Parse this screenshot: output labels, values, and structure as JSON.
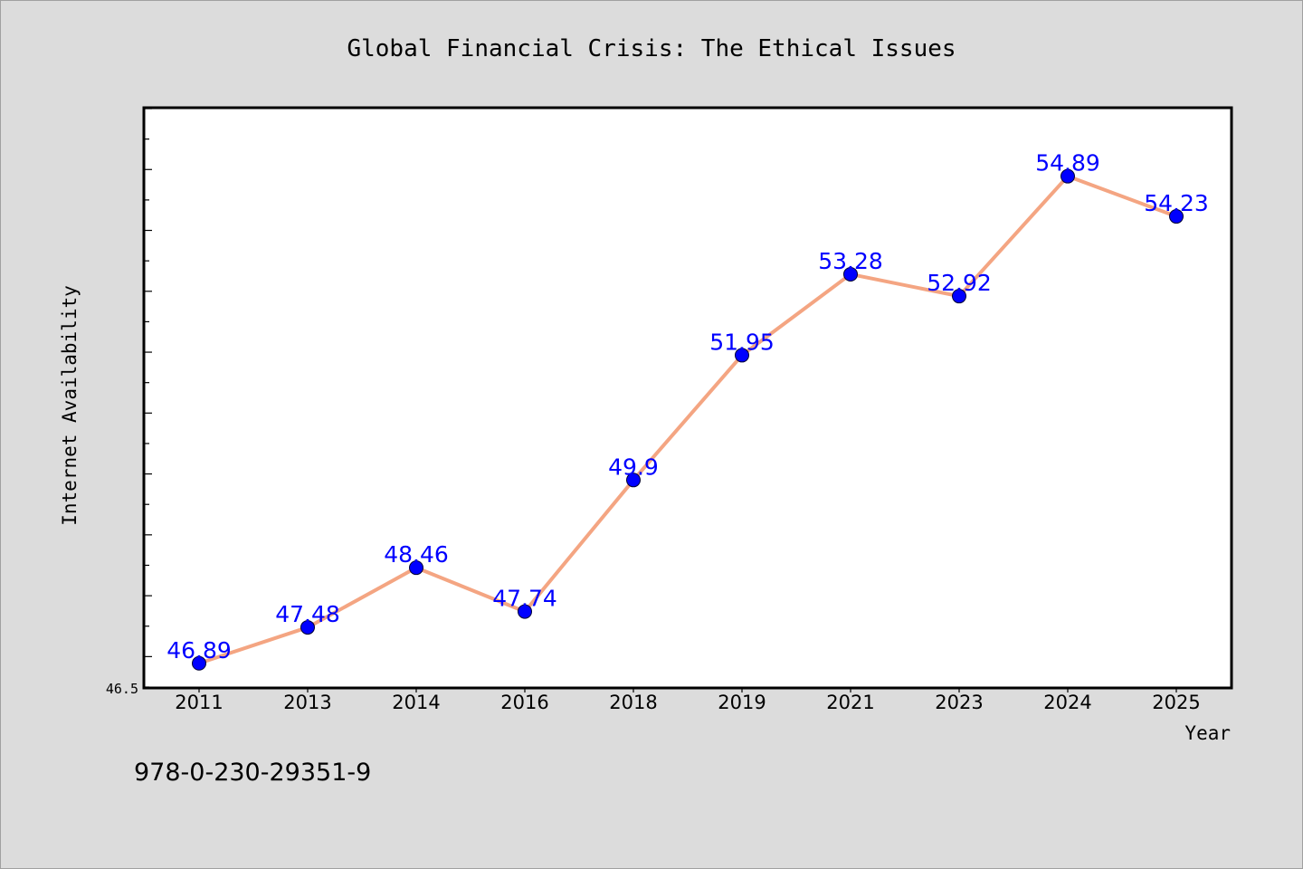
{
  "chart_data": {
    "type": "line",
    "title": "Global Financial Crisis: The Ethical Issues",
    "xlabel": "Year",
    "ylabel": "Internet Availability",
    "categories": [
      "2011",
      "2013",
      "2014",
      "2016",
      "2018",
      "2019",
      "2021",
      "2023",
      "2024",
      "2025"
    ],
    "series": [
      {
        "values": [
          46.89,
          47.48,
          48.46,
          47.74,
          49.9,
          51.95,
          53.28,
          52.92,
          54.89,
          54.23
        ]
      }
    ],
    "data_labels": [
      "46.89",
      "47.48",
      "48.46",
      "47.74",
      "49.9",
      "51.95",
      "53.28",
      "52.92",
      "54.89",
      "54.23"
    ],
    "ylim": [
      46.5,
      56.0
    ],
    "y_tick_label": "46.5",
    "grid": false,
    "line_color": "#f4a582",
    "marker_color": "#0000ff",
    "label_color": "#0000ff",
    "background_color": "#dcdcdc",
    "plot_background_color": "#ffffff"
  },
  "footer": {
    "isbn": "978-0-230-29351-9"
  }
}
